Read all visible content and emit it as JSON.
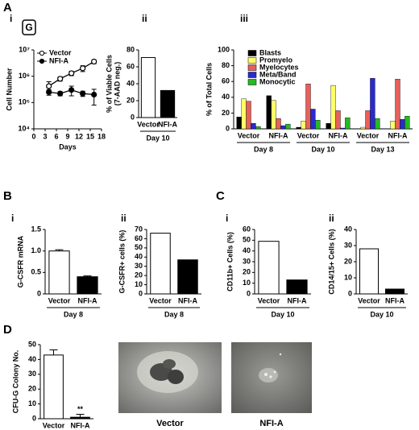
{
  "panel_letters": [
    "A",
    "B",
    "C",
    "D"
  ],
  "images": [
    {
      "caption": "Vector"
    },
    {
      "caption": "NFI-A"
    }
  ],
  "chart_data": [
    {
      "type": "line",
      "label": "i",
      "badge": "G",
      "xlabel": "Days",
      "ylabel": [
        "Cell Number"
      ],
      "x": [
        4,
        7,
        10,
        13,
        16
      ],
      "xlim": [
        0,
        18
      ],
      "xticks": [
        0,
        3,
        6,
        9,
        12,
        15,
        18
      ],
      "yscale": "log",
      "ylim": [
        10000,
        10000000
      ],
      "yticks": [
        {
          "value": 10000,
          "label": "10⁴"
        },
        {
          "value": 100000,
          "label": "10⁵"
        },
        {
          "value": 1000000,
          "label": "10⁶"
        },
        {
          "value": 10000000,
          "label": "10⁷"
        }
      ],
      "legend": "upper left",
      "series": [
        {
          "name": "Vector",
          "color": "#000000",
          "marker": "open",
          "values": [
            420000,
            800000,
            1300000,
            2000000,
            3600000
          ],
          "errors": [
            200000,
            150000,
            250000,
            500000,
            600000
          ]
        },
        {
          "name": "NFI-A",
          "color": "#000000",
          "marker": "filled",
          "values": [
            250000,
            220000,
            300000,
            220000,
            200000
          ],
          "errors": [
            60000,
            40000,
            120000,
            50000,
            120000
          ]
        }
      ]
    },
    {
      "type": "bar",
      "label": "ii",
      "ylabel": [
        "% of Viable Cells",
        "(7-AAD neg.)"
      ],
      "group": "Day 10",
      "categories": [
        "Vector",
        "NFI-A"
      ],
      "values": [
        71,
        32
      ],
      "colors": [
        "#ffffff",
        "#000000"
      ],
      "ylim": [
        0,
        80
      ],
      "yticks": [
        0,
        20,
        40,
        60,
        80
      ]
    },
    {
      "type": "grouped_bar",
      "label": "iii",
      "ylabel": [
        "% of Total Cells"
      ],
      "categories": [
        "Vector",
        "NFI-A",
        "Vector",
        "NFI-A",
        "Vector",
        "NFI-A"
      ],
      "groups": [
        "Day 8",
        "Day 10",
        "Day 13"
      ],
      "ylim": [
        0,
        100
      ],
      "yticks": [
        0,
        20,
        40,
        60,
        80,
        100
      ],
      "legend": "upper left",
      "series": [
        {
          "name": "Blasts",
          "color": "#000000",
          "values": [
            15,
            42,
            2,
            7,
            0,
            0
          ]
        },
        {
          "name": "Promyelo",
          "color": "#ffff66",
          "values": [
            38,
            36,
            10,
            55,
            2,
            10
          ]
        },
        {
          "name": "Myelocytes",
          "color": "#e8605a",
          "values": [
            35,
            13,
            57,
            23,
            23,
            63
          ]
        },
        {
          "name": "Meta/Band",
          "color": "#2a2ad0",
          "values": [
            7,
            4,
            25,
            1,
            64,
            12
          ]
        },
        {
          "name": "Monocytic",
          "color": "#22bb22",
          "values": [
            3,
            6,
            11,
            14,
            13,
            16
          ]
        }
      ]
    },
    {
      "type": "bar",
      "label": "i",
      "ylabel": [
        "G-CSFR mRNA"
      ],
      "group": "Day 8",
      "categories": [
        "Vector",
        "NFI-A"
      ],
      "values": [
        1.0,
        0.4
      ],
      "errors": [
        0.03,
        0.02
      ],
      "colors": [
        "#ffffff",
        "#000000"
      ],
      "ylim": [
        0,
        1.5
      ],
      "yticks": [
        0,
        0.5,
        {
          "value": 1,
          "label": "1.0"
        },
        1.5
      ]
    },
    {
      "type": "bar",
      "label": "ii",
      "ylabel": [
        "G-CSFR+ cells (%)"
      ],
      "group": "Day 8",
      "categories": [
        "Vector",
        "NFI-A"
      ],
      "values": [
        66,
        37
      ],
      "colors": [
        "#ffffff",
        "#000000"
      ],
      "ylim": [
        0,
        70
      ],
      "yticks": [
        0,
        10,
        20,
        30,
        40,
        50,
        60,
        70
      ]
    },
    {
      "type": "bar",
      "label": "i",
      "ylabel": [
        "CD11b+ Cells (%)"
      ],
      "group": "Day 10",
      "categories": [
        "Vector",
        "NFI-A"
      ],
      "values": [
        49,
        13
      ],
      "colors": [
        "#ffffff",
        "#000000"
      ],
      "ylim": [
        0,
        60
      ],
      "yticks": [
        0,
        10,
        20,
        30,
        40,
        50,
        60
      ]
    },
    {
      "type": "bar",
      "label": "ii",
      "ylabel": [
        "CD14/15+ Cells (%)"
      ],
      "group": "Day 10",
      "categories": [
        "Vector",
        "NFI-A"
      ],
      "values": [
        28,
        3
      ],
      "colors": [
        "#ffffff",
        "#000000"
      ],
      "ylim": [
        0,
        40
      ],
      "yticks": [
        0,
        10,
        20,
        30,
        40
      ]
    },
    {
      "type": "bar",
      "ylabel": [
        "CFU-G Colony No."
      ],
      "annotation": "**",
      "categories": [
        "Vector",
        "NFI-A"
      ],
      "values": [
        43,
        1
      ],
      "errors": [
        3.5,
        2
      ],
      "colors": [
        "#ffffff",
        "#000000"
      ],
      "ylim": [
        0,
        50
      ],
      "yticks": [
        0,
        10,
        20,
        30,
        40,
        50
      ]
    }
  ]
}
